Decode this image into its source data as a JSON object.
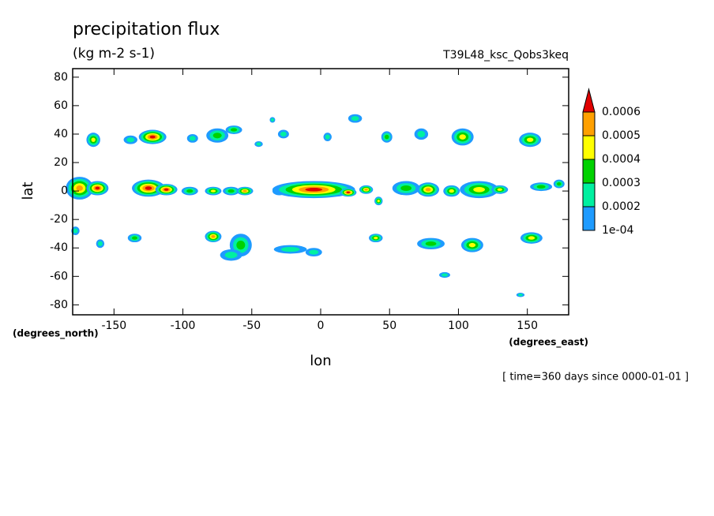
{
  "chart_data": {
    "type": "contour",
    "title": "precipitation flux",
    "subtitle": "(kg m-2 s-1)",
    "case_label": "T39L48_ksc_Qobs3keq",
    "y_label": "lat",
    "x_label": "lon",
    "y_units": "(degrees_north)",
    "x_units": "(degrees_east)",
    "time_label": "[ time=360 days since 0000-01-01 ]",
    "xlim": [
      -180,
      180
    ],
    "xticks": [
      -150,
      -100,
      -50,
      0,
      50,
      100,
      150
    ],
    "ylim": [
      -87,
      86
    ],
    "yticks": [
      -80,
      -60,
      -40,
      -20,
      0,
      20,
      40,
      60,
      80
    ],
    "levels": [
      {
        "value": 0.0001,
        "label": "1e-04"
      },
      0.0002,
      0.0003,
      0.0004,
      0.0005,
      0.0006
    ],
    "colors": [
      "#1e9bff",
      "#00f0a0",
      "#00d200",
      "#ffff00",
      "#ffa000",
      "#e00000"
    ],
    "blobs": [
      [
        -175,
        2,
        10,
        8,
        0.0005
      ],
      [
        -162,
        2,
        8,
        5,
        0.0007
      ],
      [
        -125,
        2,
        12,
        6,
        0.0007
      ],
      [
        -112,
        1,
        8,
        4,
        0.0007
      ],
      [
        -95,
        0,
        6,
        3,
        0.0003
      ],
      [
        -78,
        0,
        6,
        3,
        0.0004
      ],
      [
        -65,
        0,
        6,
        3,
        0.0003
      ],
      [
        -55,
        0,
        6,
        3,
        0.0005
      ],
      [
        -30,
        0,
        5,
        3,
        0.0002
      ],
      [
        -5,
        1,
        30,
        6,
        0.0008
      ],
      [
        20,
        -1,
        6,
        3,
        0.0007
      ],
      [
        33,
        1,
        5,
        3,
        0.0005
      ],
      [
        42,
        -7,
        3,
        3,
        0.0004
      ],
      [
        62,
        2,
        10,
        5,
        0.0003
      ],
      [
        78,
        1,
        8,
        5,
        0.0005
      ],
      [
        95,
        0,
        6,
        4,
        0.0004
      ],
      [
        115,
        1,
        14,
        6,
        0.0004
      ],
      [
        130,
        1,
        6,
        3,
        0.0004
      ],
      [
        160,
        3,
        8,
        3,
        0.0003
      ],
      [
        173,
        5,
        4,
        3,
        0.0003
      ],
      [
        -165,
        36,
        5,
        5,
        0.0004
      ],
      [
        -138,
        36,
        5,
        3,
        0.0002
      ],
      [
        -122,
        38,
        10,
        5,
        0.0006
      ],
      [
        -93,
        37,
        4,
        3,
        0.0002
      ],
      [
        -75,
        39,
        8,
        5,
        0.0003
      ],
      [
        -63,
        43,
        6,
        3,
        0.0003
      ],
      [
        -45,
        33,
        3,
        2,
        0.0002
      ],
      [
        -27,
        40,
        4,
        3,
        0.0002
      ],
      [
        25,
        51,
        5,
        3,
        0.0002
      ],
      [
        48,
        38,
        4,
        4,
        0.0003
      ],
      [
        73,
        40,
        5,
        4,
        0.0002
      ],
      [
        103,
        38,
        8,
        6,
        0.0004
      ],
      [
        152,
        36,
        8,
        5,
        0.0004
      ],
      [
        -35,
        50,
        2,
        2,
        0.0002
      ],
      [
        5,
        38,
        3,
        3,
        0.0002
      ],
      [
        -178,
        -28,
        3,
        3,
        0.0002
      ],
      [
        -160,
        -37,
        3,
        3,
        0.0002
      ],
      [
        -135,
        -33,
        5,
        3,
        0.0003
      ],
      [
        -78,
        -32,
        6,
        4,
        0.0005
      ],
      [
        -58,
        -38,
        8,
        8,
        0.0003
      ],
      [
        -65,
        -45,
        8,
        4,
        0.0002
      ],
      [
        -22,
        -41,
        12,
        3,
        0.0002
      ],
      [
        -5,
        -43,
        6,
        3,
        0.0002
      ],
      [
        40,
        -33,
        5,
        3,
        0.0004
      ],
      [
        80,
        -37,
        10,
        4,
        0.0003
      ],
      [
        110,
        -38,
        8,
        5,
        0.0004
      ],
      [
        153,
        -33,
        8,
        4,
        0.0004
      ],
      [
        90,
        -59,
        4,
        2,
        0.0002
      ],
      [
        145,
        -73,
        3,
        1.5,
        0.0002
      ]
    ]
  }
}
